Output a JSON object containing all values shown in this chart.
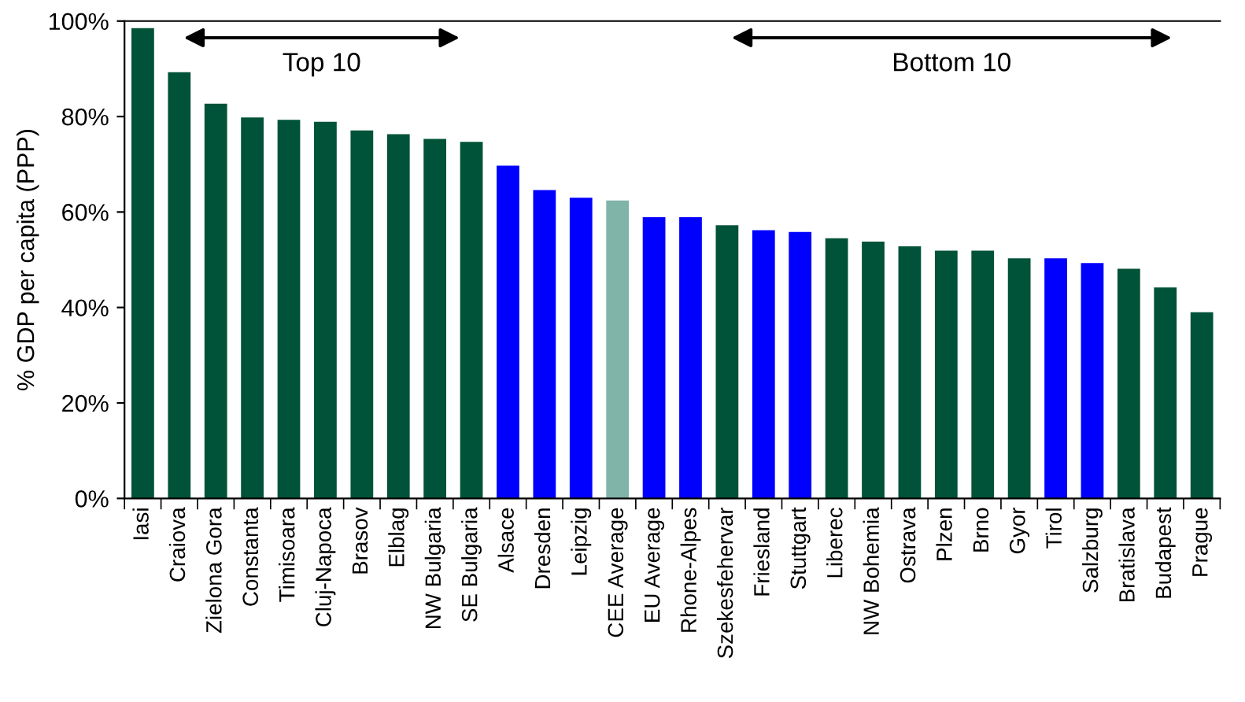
{
  "chart_data": {
    "type": "bar",
    "ylabel": "% GDP per capita (PPP)",
    "categories": [
      "Iasi",
      "Craiova",
      "Zielona Gora",
      "Constanta",
      "Timisoara",
      "Cluj-Napoca",
      "Brasov",
      "Elblag",
      "NW Bulgaria",
      "SE Bulgaria",
      "Alsace",
      "Dresden",
      "Leipzig",
      "CEE Average",
      "EU Average",
      "Rhone-Alpes",
      "Szekesfehervar",
      "Friesland",
      "Stuttgart",
      "Liberec",
      "NW Bohemia",
      "Ostrava",
      "Plzen",
      "Brno",
      "Gyor",
      "Tirol",
      "Salzburg",
      "Bratislava",
      "Budapest",
      "Prague"
    ],
    "values": [
      98.5,
      89.3,
      82.7,
      79.8,
      79.3,
      78.9,
      77.1,
      76.3,
      75.3,
      74.7,
      69.7,
      64.6,
      63.0,
      62.4,
      58.9,
      58.9,
      57.2,
      56.2,
      55.8,
      54.5,
      53.8,
      52.8,
      51.9,
      51.9,
      50.3,
      50.3,
      49.3,
      48.1,
      44.2,
      39.0
    ],
    "colors": [
      "#005238",
      "#005238",
      "#005238",
      "#005238",
      "#005238",
      "#005238",
      "#005238",
      "#005238",
      "#005238",
      "#005238",
      "#0000ff",
      "#0000ff",
      "#0000ff",
      "#80b4a8",
      "#0000ff",
      "#0000ff",
      "#005238",
      "#0000ff",
      "#0000ff",
      "#005238",
      "#005238",
      "#005238",
      "#005238",
      "#005238",
      "#005238",
      "#0000ff",
      "#0000ff",
      "#005238",
      "#005238",
      "#005238"
    ],
    "ylim": [
      0,
      100
    ],
    "yticks": [
      {
        "value": 0,
        "label": "0%"
      },
      {
        "value": 20,
        "label": "20%"
      },
      {
        "value": 40,
        "label": "40%"
      },
      {
        "value": 60,
        "label": "60%"
      },
      {
        "value": 80,
        "label": "80%"
      },
      {
        "value": 100,
        "label": "100%"
      }
    ],
    "annotations": [
      "Top 10",
      "Bottom 10"
    ],
    "grid": false,
    "legend": false
  }
}
